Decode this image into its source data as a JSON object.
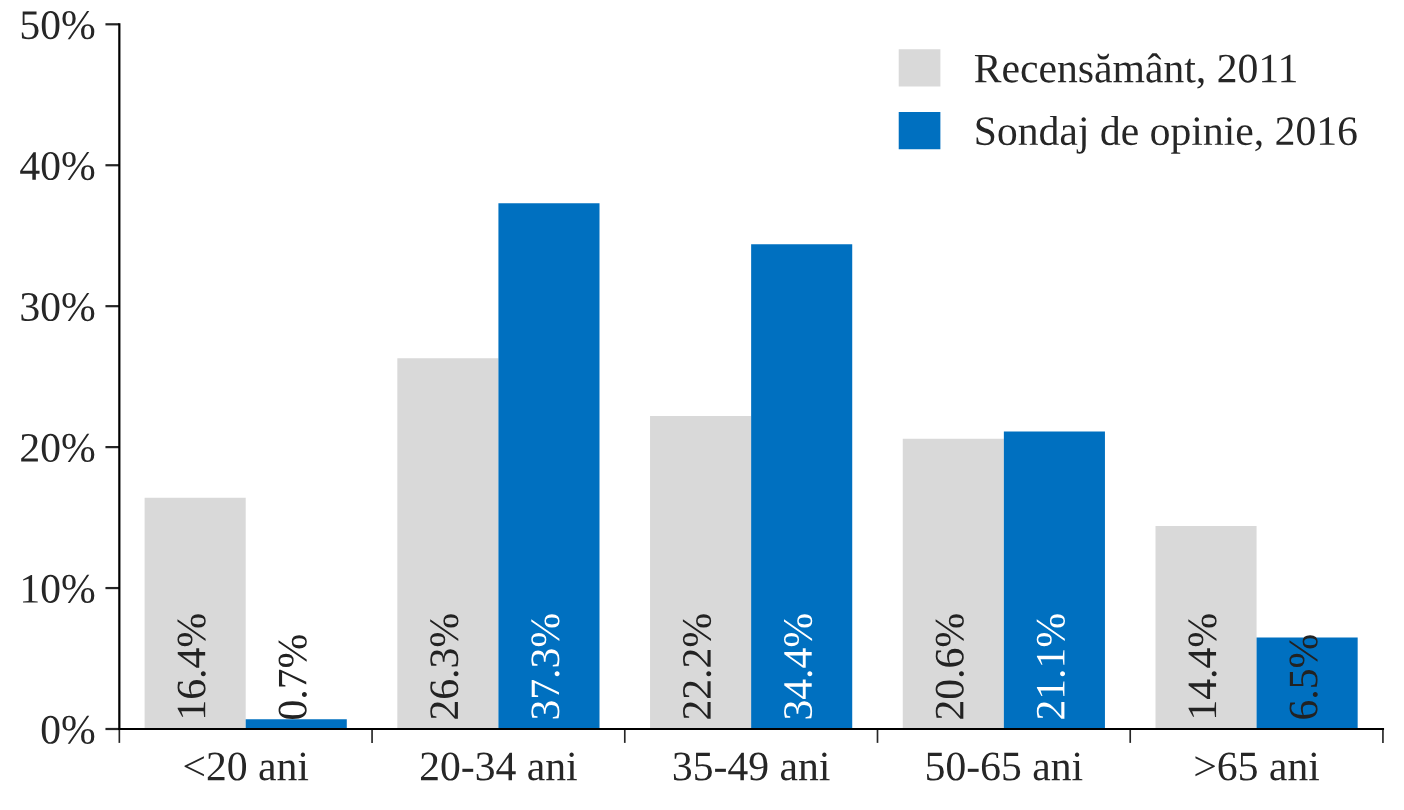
{
  "chart_data": {
    "type": "bar",
    "categories": [
      "<20 ani",
      "20-34 ani",
      "35-49 ani",
      "50-65 ani",
      ">65 ani"
    ],
    "series": [
      {
        "name": "Recensământ, 2011",
        "color": "#d9d9d9",
        "values": [
          16.4,
          26.3,
          22.2,
          20.6,
          14.4
        ],
        "value_labels": [
          "16.4%",
          "26.3%",
          "22.2%",
          "20.6%",
          "14.4%"
        ]
      },
      {
        "name": "Sondaj de opinie, 2016",
        "color": "#0070c0",
        "values": [
          0.7,
          37.3,
          34.4,
          21.1,
          6.5
        ],
        "value_labels": [
          "0.7%",
          "37.3%",
          "34.4%",
          "21.1%",
          "6.5%"
        ]
      }
    ],
    "ylim": [
      0,
      50
    ],
    "yticks": [
      {
        "value": 0,
        "label": "0%"
      },
      {
        "value": 10,
        "label": "10%"
      },
      {
        "value": 20,
        "label": "20%"
      },
      {
        "value": 30,
        "label": "30%"
      },
      {
        "value": 40,
        "label": "40%"
      },
      {
        "value": 50,
        "label": "50%"
      }
    ],
    "grid": false,
    "legend": "top right"
  }
}
